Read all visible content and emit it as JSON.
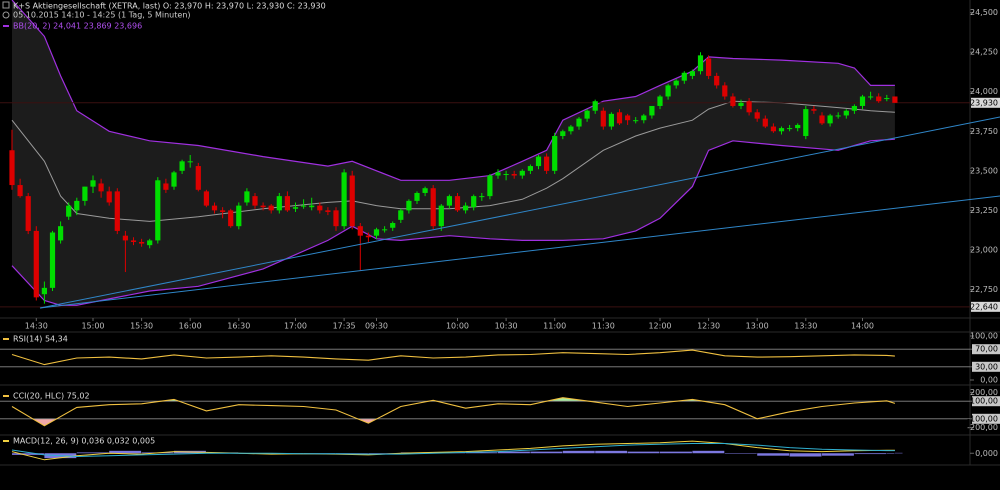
{
  "chart_data": [
    {
      "type": "candlestick",
      "title": "K+S Aktiengesellschaft (XETRA, last)  O: 23,970  H: 23,970  L: 23,930  C: 23,930",
      "subtitle": "05.10.2015 14:10 - 14:25 (1 Tag, 5 Minuten)",
      "colors": {
        "up": "#00dd00",
        "down": "#dd0000"
      },
      "ohlc": [
        [
          23.63,
          23.76,
          23.38,
          23.41
        ],
        [
          23.41,
          23.45,
          23.33,
          23.34
        ],
        [
          23.34,
          23.36,
          23.1,
          23.12
        ],
        [
          23.12,
          23.15,
          22.68,
          22.7
        ],
        [
          22.72,
          22.8,
          22.66,
          22.76
        ],
        [
          22.76,
          23.12,
          22.74,
          23.11
        ],
        [
          23.06,
          23.18,
          23.04,
          23.15
        ],
        [
          23.21,
          23.3,
          23.19,
          23.28
        ],
        [
          23.25,
          23.33,
          23.22,
          23.31
        ],
        [
          23.31,
          23.4,
          23.28,
          23.4
        ],
        [
          23.4,
          23.47,
          23.36,
          23.44
        ],
        [
          23.42,
          23.45,
          23.33,
          23.37
        ],
        [
          23.37,
          23.4,
          23.28,
          23.3
        ],
        [
          23.37,
          23.39,
          23.1,
          23.12
        ],
        [
          23.09,
          23.12,
          22.86,
          23.06
        ],
        [
          23.06,
          23.08,
          23.03,
          23.05
        ],
        [
          23.05,
          23.07,
          23.02,
          23.04
        ],
        [
          23.03,
          23.07,
          23.01,
          23.06
        ],
        [
          23.06,
          23.46,
          23.04,
          23.44
        ],
        [
          23.42,
          23.45,
          23.36,
          23.38
        ],
        [
          23.4,
          23.5,
          23.38,
          23.49
        ],
        [
          23.5,
          23.57,
          23.48,
          23.56
        ],
        [
          23.56,
          23.6,
          23.52,
          23.56
        ],
        [
          23.53,
          23.55,
          23.37,
          23.38
        ],
        [
          23.37,
          23.38,
          23.27,
          23.28
        ],
        [
          23.28,
          23.3,
          23.23,
          23.25
        ],
        [
          23.25,
          23.27,
          23.2,
          23.24
        ],
        [
          23.25,
          23.26,
          23.14,
          23.15
        ],
        [
          23.15,
          23.3,
          23.13,
          23.28
        ],
        [
          23.3,
          23.39,
          23.28,
          23.37
        ],
        [
          23.34,
          23.36,
          23.26,
          23.28
        ],
        [
          23.28,
          23.3,
          23.25,
          23.27
        ],
        [
          23.28,
          23.29,
          23.23,
          23.25
        ],
        [
          23.25,
          23.36,
          23.23,
          23.34
        ],
        [
          23.34,
          23.37,
          23.24,
          23.25
        ],
        [
          23.26,
          23.3,
          23.24,
          23.27
        ],
        [
          23.28,
          23.32,
          23.26,
          23.28
        ],
        [
          23.27,
          23.33,
          23.25,
          23.28
        ],
        [
          23.28,
          23.3,
          23.23,
          23.25
        ],
        [
          23.25,
          23.27,
          23.22,
          23.24
        ],
        [
          23.25,
          23.27,
          23.12,
          23.15
        ],
        [
          23.15,
          23.51,
          23.13,
          23.49
        ],
        [
          23.47,
          23.5,
          23.13,
          23.15
        ],
        [
          23.15,
          23.17,
          22.87,
          23.09
        ],
        [
          23.09,
          23.11,
          23.05,
          23.08
        ],
        [
          23.09,
          23.14,
          23.07,
          23.13
        ],
        [
          23.13,
          23.15,
          23.11,
          23.13
        ],
        [
          23.14,
          23.18,
          23.12,
          23.17
        ],
        [
          23.19,
          23.26,
          23.17,
          23.25
        ],
        [
          23.25,
          23.32,
          23.23,
          23.31
        ],
        [
          23.31,
          23.37,
          23.29,
          23.36
        ],
        [
          23.36,
          23.4,
          23.34,
          23.39
        ],
        [
          23.39,
          23.41,
          23.13,
          23.15
        ],
        [
          23.15,
          23.29,
          23.12,
          23.28
        ],
        [
          23.28,
          23.35,
          23.26,
          23.34
        ],
        [
          23.34,
          23.36,
          23.24,
          23.25
        ],
        [
          23.25,
          23.3,
          23.23,
          23.28
        ],
        [
          23.27,
          23.35,
          23.25,
          23.34
        ],
        [
          23.34,
          23.36,
          23.31,
          23.34
        ],
        [
          23.34,
          23.48,
          23.32,
          23.47
        ],
        [
          23.47,
          23.51,
          23.45,
          23.49
        ],
        [
          23.48,
          23.5,
          23.44,
          23.48
        ],
        [
          23.48,
          23.5,
          23.45,
          23.47
        ],
        [
          23.47,
          23.51,
          23.45,
          23.5
        ],
        [
          23.5,
          23.54,
          23.48,
          23.53
        ],
        [
          23.53,
          23.6,
          23.51,
          23.59
        ],
        [
          23.59,
          23.61,
          23.48,
          23.5
        ],
        [
          23.5,
          23.74,
          23.48,
          23.72
        ],
        [
          23.72,
          23.76,
          23.7,
          23.75
        ],
        [
          23.75,
          23.79,
          23.73,
          23.78
        ],
        [
          23.78,
          23.84,
          23.76,
          23.83
        ],
        [
          23.83,
          23.89,
          23.81,
          23.88
        ],
        [
          23.88,
          23.95,
          23.86,
          23.94
        ],
        [
          23.88,
          23.9,
          23.76,
          23.78
        ],
        [
          23.78,
          23.87,
          23.76,
          23.86
        ],
        [
          23.87,
          23.89,
          23.79,
          23.8
        ],
        [
          23.85,
          23.86,
          23.79,
          23.82
        ],
        [
          23.82,
          23.84,
          23.8,
          23.82
        ],
        [
          23.82,
          23.86,
          23.8,
          23.85
        ],
        [
          23.85,
          23.91,
          23.83,
          23.91
        ],
        [
          23.91,
          23.98,
          23.89,
          23.97
        ],
        [
          23.97,
          24.05,
          23.95,
          24.04
        ],
        [
          24.04,
          24.08,
          24.02,
          24.07
        ],
        [
          24.07,
          24.13,
          24.05,
          24.12
        ],
        [
          24.1,
          24.14,
          24.08,
          24.13
        ],
        [
          24.13,
          24.25,
          24.11,
          24.23
        ],
        [
          24.21,
          24.23,
          24.08,
          24.1
        ],
        [
          24.1,
          24.12,
          24.02,
          24.04
        ],
        [
          24.04,
          24.06,
          23.95,
          23.97
        ],
        [
          23.97,
          23.99,
          23.9,
          23.91
        ],
        [
          23.91,
          23.95,
          23.89,
          23.93
        ],
        [
          23.94,
          23.96,
          23.85,
          23.87
        ],
        [
          23.87,
          23.89,
          23.81,
          23.83
        ],
        [
          23.83,
          23.85,
          23.77,
          23.78
        ],
        [
          23.78,
          23.8,
          23.74,
          23.75
        ],
        [
          23.75,
          23.78,
          23.73,
          23.77
        ],
        [
          23.77,
          23.79,
          23.75,
          23.77
        ],
        [
          23.77,
          23.8,
          23.75,
          23.79
        ],
        [
          23.72,
          23.91,
          23.7,
          23.89
        ],
        [
          23.89,
          23.91,
          23.86,
          23.88
        ],
        [
          23.85,
          23.87,
          23.79,
          23.8
        ],
        [
          23.8,
          23.86,
          23.78,
          23.85
        ],
        [
          23.85,
          23.87,
          23.83,
          23.85
        ],
        [
          23.85,
          23.89,
          23.83,
          23.88
        ],
        [
          23.88,
          23.92,
          23.86,
          23.91
        ],
        [
          23.91,
          23.98,
          23.89,
          23.97
        ],
        [
          23.97,
          24.0,
          23.95,
          23.97
        ],
        [
          23.97,
          23.99,
          23.93,
          23.94
        ],
        [
          23.96,
          23.98,
          23.94,
          23.96
        ],
        [
          23.97,
          23.97,
          23.93,
          23.93
        ]
      ],
      "xticks": [
        {
          "value": 3,
          "label": "14:30"
        },
        {
          "value": 10,
          "label": "15:00"
        },
        {
          "value": 16,
          "label": "15:30"
        },
        {
          "value": 22,
          "label": "16:00"
        },
        {
          "value": 28,
          "label": "16:30"
        },
        {
          "value": 35,
          "label": "17:00"
        },
        {
          "value": 41,
          "label": "17:35"
        },
        {
          "value": 45,
          "label": "09:30"
        },
        {
          "value": 55,
          "label": "10:00"
        },
        {
          "value": 61,
          "label": "10:30"
        },
        {
          "value": 67,
          "label": "11:00"
        },
        {
          "value": 73,
          "label": "11:30"
        },
        {
          "value": 80,
          "label": "12:00"
        },
        {
          "value": 86,
          "label": "12:30"
        },
        {
          "value": 92,
          "label": "13:00"
        },
        {
          "value": 98,
          "label": "13:30"
        },
        {
          "value": 105,
          "label": "14:00"
        }
      ],
      "ylim": [
        22.62,
        24.58
      ],
      "yticks": [
        {
          "value": 22.75,
          "label": "22,750"
        },
        {
          "value": 23,
          "label": "23,000"
        },
        {
          "value": 23.25,
          "label": "23,250"
        },
        {
          "value": 23.5,
          "label": "23,500"
        },
        {
          "value": 23.75,
          "label": "23,750"
        },
        {
          "value": 24,
          "label": "24,000"
        },
        {
          "value": 24.25,
          "label": "24,250"
        },
        {
          "value": 24.5,
          "label": "24,500"
        }
      ],
      "price_markers": [
        {
          "value": 23.93,
          "label": "23,930"
        },
        {
          "value": 22.64,
          "label": "22,640"
        }
      ],
      "bands": {
        "legend": "BB(20, 2)  24,041  23,869  23,696",
        "color": "#a030e0",
        "middle_color": "#9a9a9a",
        "fill": "#1c1c1c",
        "x": [
          0,
          4,
          6,
          8,
          12,
          17,
          23,
          31,
          39,
          42,
          45,
          48,
          54,
          59,
          63,
          66,
          68,
          73,
          77,
          80,
          84,
          86,
          89,
          95,
          102,
          104,
          106,
          109
        ],
        "upper": [
          24.58,
          24.35,
          24.1,
          23.88,
          23.75,
          23.69,
          23.66,
          23.59,
          23.53,
          23.56,
          23.5,
          23.44,
          23.44,
          23.47,
          23.56,
          23.63,
          23.82,
          23.94,
          23.97,
          24.04,
          24.13,
          24.22,
          24.21,
          24.2,
          24.18,
          24.15,
          24.04,
          24.04
        ],
        "middle": [
          23.82,
          23.56,
          23.34,
          23.23,
          23.2,
          23.18,
          23.21,
          23.26,
          23.3,
          23.31,
          23.28,
          23.26,
          23.26,
          23.28,
          23.32,
          23.39,
          23.45,
          23.63,
          23.72,
          23.77,
          23.82,
          23.89,
          23.94,
          23.93,
          23.9,
          23.89,
          23.88,
          23.87
        ],
        "lower": [
          22.9,
          22.68,
          22.65,
          22.65,
          22.69,
          22.74,
          22.77,
          22.88,
          23.06,
          23.15,
          23.07,
          23.06,
          23.09,
          23.07,
          23.06,
          23.06,
          23.06,
          23.07,
          23.12,
          23.2,
          23.4,
          23.63,
          23.69,
          23.66,
          23.63,
          23.66,
          23.69,
          23.7
        ]
      }
    },
    {
      "type": "line",
      "title": "RSI(14)  54,34",
      "color": "#f0c040",
      "x": [
        0,
        4,
        8,
        12,
        16,
        20,
        24,
        28,
        32,
        36,
        40,
        44,
        48,
        52,
        56,
        60,
        64,
        68,
        72,
        76,
        80,
        84,
        88,
        92,
        96,
        100,
        104,
        108,
        109
      ],
      "values": [
        58,
        35,
        50,
        52,
        48,
        57,
        50,
        52,
        55,
        52,
        48,
        45,
        55,
        50,
        52,
        57,
        58,
        62,
        60,
        58,
        62,
        68,
        55,
        52,
        53,
        55,
        57,
        56,
        54.34
      ],
      "ylim": [
        0,
        100
      ],
      "yticks": [
        {
          "value": 0,
          "label": "0,00"
        },
        {
          "value": 30,
          "label": "30,00"
        },
        {
          "value": 70,
          "label": "70,00"
        },
        {
          "value": 100,
          "label": "100,00"
        }
      ],
      "levels": [
        70,
        30
      ]
    },
    {
      "type": "line",
      "title": "CCI(20, HLC)  75,02",
      "color": "#f0c040",
      "fill_colors": {
        "above": "#a8eca0",
        "below": "#f0a8a8"
      },
      "x": [
        0,
        4,
        8,
        12,
        16,
        20,
        24,
        28,
        32,
        36,
        40,
        44,
        48,
        52,
        56,
        60,
        64,
        68,
        72,
        76,
        80,
        84,
        88,
        92,
        96,
        100,
        104,
        108,
        109
      ],
      "values": [
        40,
        -180,
        30,
        60,
        70,
        120,
        -10,
        60,
        50,
        40,
        0,
        -150,
        40,
        110,
        20,
        70,
        60,
        140,
        90,
        40,
        80,
        120,
        60,
        -100,
        -20,
        40,
        80,
        105,
        75.02
      ],
      "ylim": [
        -250,
        250
      ],
      "yticks": [
        {
          "value": -200,
          "label": "-200,00"
        },
        {
          "value": -100,
          "label": "-100,00"
        },
        {
          "value": 100,
          "label": "100,00"
        },
        {
          "value": 200,
          "label": "200,00"
        }
      ],
      "levels": [
        100,
        -100
      ]
    },
    {
      "type": "macd",
      "title": "MACD(12, 26, 9)  0,036  0,032  0,005",
      "x": [
        0,
        4,
        8,
        12,
        16,
        20,
        24,
        28,
        32,
        36,
        40,
        44,
        48,
        52,
        56,
        60,
        64,
        68,
        72,
        76,
        80,
        84,
        88,
        92,
        96,
        100,
        104,
        108,
        109
      ],
      "series": [
        {
          "color": "#f0d040",
          "values": [
            0.02,
            -0.08,
            -0.03,
            0,
            -0.01,
            0.02,
            0.01,
            0,
            -0.01,
            -0.005,
            -0.01,
            -0.02,
            0,
            0.01,
            0.02,
            0.04,
            0.06,
            0.09,
            0.11,
            0.12,
            0.13,
            0.15,
            0.12,
            0.07,
            0.03,
            0.02,
            0.03,
            0.036,
            0.036
          ]
        },
        {
          "color": "#30b0d0",
          "values": [
            0.04,
            -0.02,
            -0.04,
            -0.03,
            -0.02,
            -0.01,
            0,
            0,
            0,
            -0.005,
            -0.005,
            -0.01,
            -0.01,
            0,
            0.01,
            0.02,
            0.04,
            0.06,
            0.08,
            0.1,
            0.11,
            0.12,
            0.12,
            0.1,
            0.07,
            0.05,
            0.04,
            0.033,
            0.032
          ]
        }
      ],
      "histogram": {
        "color": "#7c78e0",
        "values": [
          -0.02,
          -0.06,
          0.01,
          0.03,
          0.01,
          0.03,
          0.01,
          0,
          -0.01,
          0,
          -0.005,
          -0.01,
          0.01,
          0.01,
          0.01,
          0.02,
          0.02,
          0.03,
          0.03,
          0.02,
          0.02,
          0.03,
          0,
          -0.03,
          -0.04,
          -0.03,
          -0.01,
          0.003,
          0.005
        ]
      },
      "ylim": [
        -0.12,
        0.2
      ],
      "yticks": [
        {
          "value": 0,
          "label": "0,000"
        }
      ]
    }
  ]
}
